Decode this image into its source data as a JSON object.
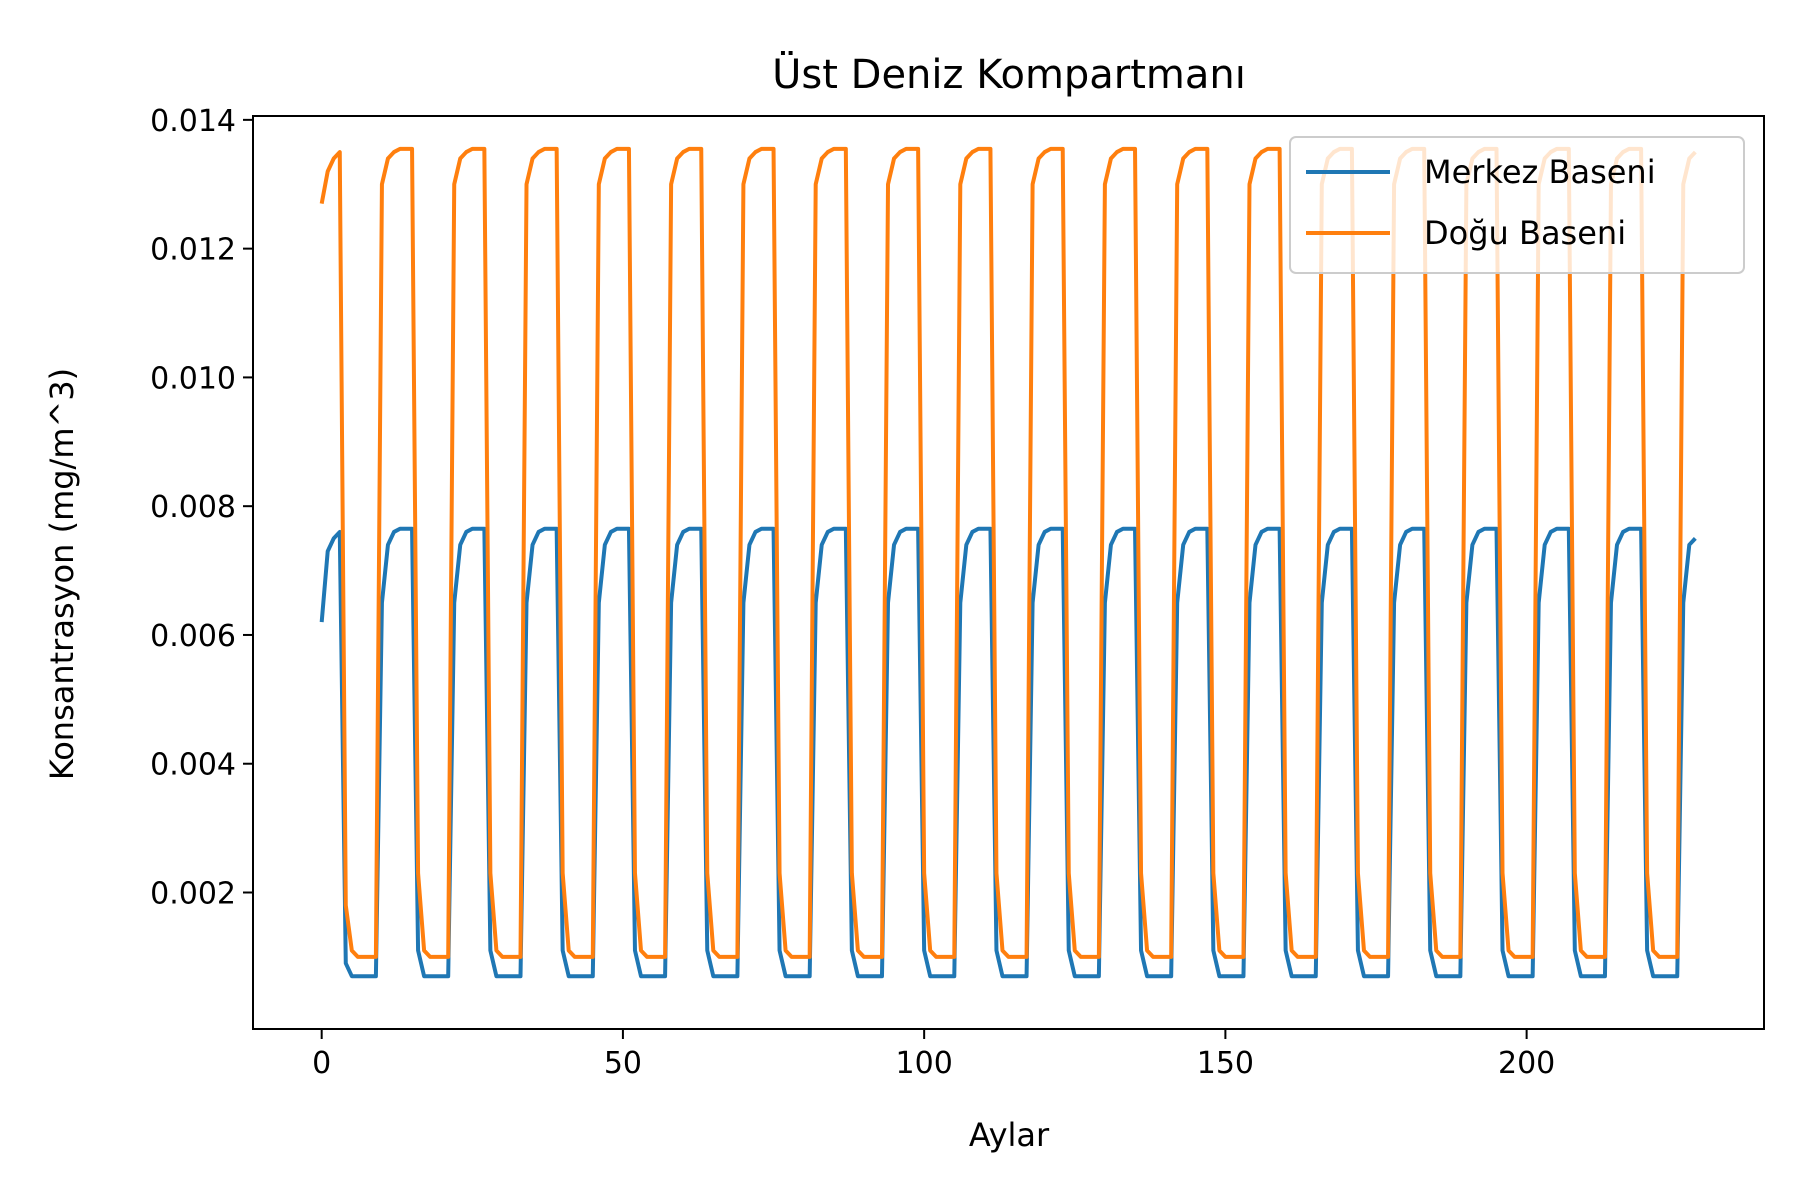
{
  "chart_data": {
    "type": "line",
    "title": "Üst Deniz Kompartmanı",
    "xlabel": "Aylar",
    "ylabel": "Konsantrasyon (mg/m^3)",
    "xlim": [
      -11.4,
      239.4
    ],
    "ylim": [
      -0.00012,
      0.01406
    ],
    "xticks": [
      0,
      50,
      100,
      150,
      200
    ],
    "xtick_labels": [
      "0",
      "50",
      "100",
      "150",
      "200"
    ],
    "yticks": [
      0.002,
      0.004,
      0.006,
      0.008,
      0.01,
      0.012,
      0.014
    ],
    "ytick_labels": [
      "0.002",
      "0.004",
      "0.006",
      "0.008",
      "0.010",
      "0.012",
      "0.014"
    ],
    "grid": false,
    "legend_position": "top-right",
    "period_months": 12,
    "x": {
      "start": 0,
      "end": 228,
      "step": 1
    },
    "series": [
      {
        "name": "Merkez Baseni",
        "color": "#1f77b4",
        "first_cycle": [
          0.0062,
          0.0073,
          0.0075,
          0.0076,
          0.0009,
          0.0007,
          0.0007,
          0.0007,
          0.0007,
          0.0007
        ],
        "cycle": [
          0.0065,
          0.0074,
          0.0076,
          0.00765,
          0.00765,
          0.00765,
          0.0011,
          0.0007,
          0.0007,
          0.0007,
          0.0007,
          0.0007
        ],
        "last_value": 0.0075
      },
      {
        "name": "Doğu Baseni",
        "color": "#ff7f0e",
        "first_cycle": [
          0.0127,
          0.0132,
          0.0134,
          0.0135,
          0.0018,
          0.0011,
          0.001,
          0.001,
          0.001,
          0.001
        ],
        "cycle": [
          0.013,
          0.0134,
          0.0135,
          0.01355,
          0.01355,
          0.01355,
          0.0023,
          0.0011,
          0.001,
          0.001,
          0.001,
          0.001
        ],
        "last_value": 0.0135
      }
    ]
  }
}
